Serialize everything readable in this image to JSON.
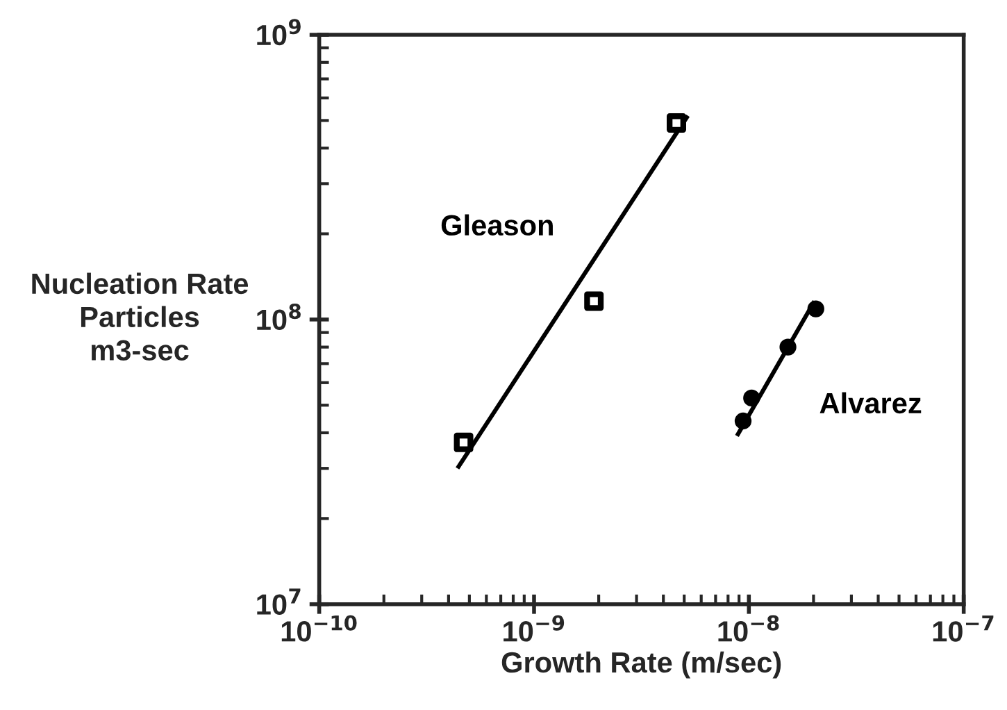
{
  "chart_data": {
    "type": "scatter",
    "xlabel": "Growth Rate (m/sec)",
    "ylabel": "Nucleation Rate\nParticles\nm3-sec",
    "log": "xy",
    "xlim": [
      1e-10,
      1e-07
    ],
    "ylim": [
      10000000.0,
      1000000000.0
    ],
    "xticks": [
      {
        "value": 1e-10,
        "label": "10$^{−10}$"
      },
      {
        "value": 1e-09,
        "label": "10$^{−9}$"
      },
      {
        "value": 1e-08,
        "label": "10$^{−8}$"
      },
      {
        "value": 1e-07,
        "label": "10$^{−7}$"
      }
    ],
    "yticks": [
      {
        "value": 10000000.0,
        "label": "10$^{7}$"
      },
      {
        "value": 100000000.0,
        "label": "10$^{8}$"
      },
      {
        "value": 1000000000.0,
        "label": "10$^{9}$"
      }
    ],
    "grid": false,
    "legend": false,
    "series": [
      {
        "name": "Gleason",
        "marker": "square",
        "color": "#000000",
        "x": [
          4.7e-10,
          1.9e-09,
          4.6e-09
        ],
        "values": [
          37000000.0,
          116000000.0,
          490000000.0
        ]
      },
      {
        "name": "Alvarez",
        "marker": "circle",
        "color": "#000000",
        "x": [
          9.4e-09,
          1.03e-08,
          1.52e-08,
          2.05e-08
        ],
        "values": [
          44000000.0,
          53000000.0,
          80000000.0,
          109000000.0
        ]
      },
      {
        "type": "line",
        "color": "#000000",
        "line_style": "solid",
        "x": [
          4.4e-10,
          5.2e-09
        ],
        "values": [
          30000000.0,
          520000000.0
        ]
      },
      {
        "type": "line",
        "color": "#000000",
        "line_style": "solid",
        "x": [
          8.8e-09,
          2.02e-08
        ],
        "values": [
          39000000.0,
          116000000.0
        ]
      }
    ]
  }
}
